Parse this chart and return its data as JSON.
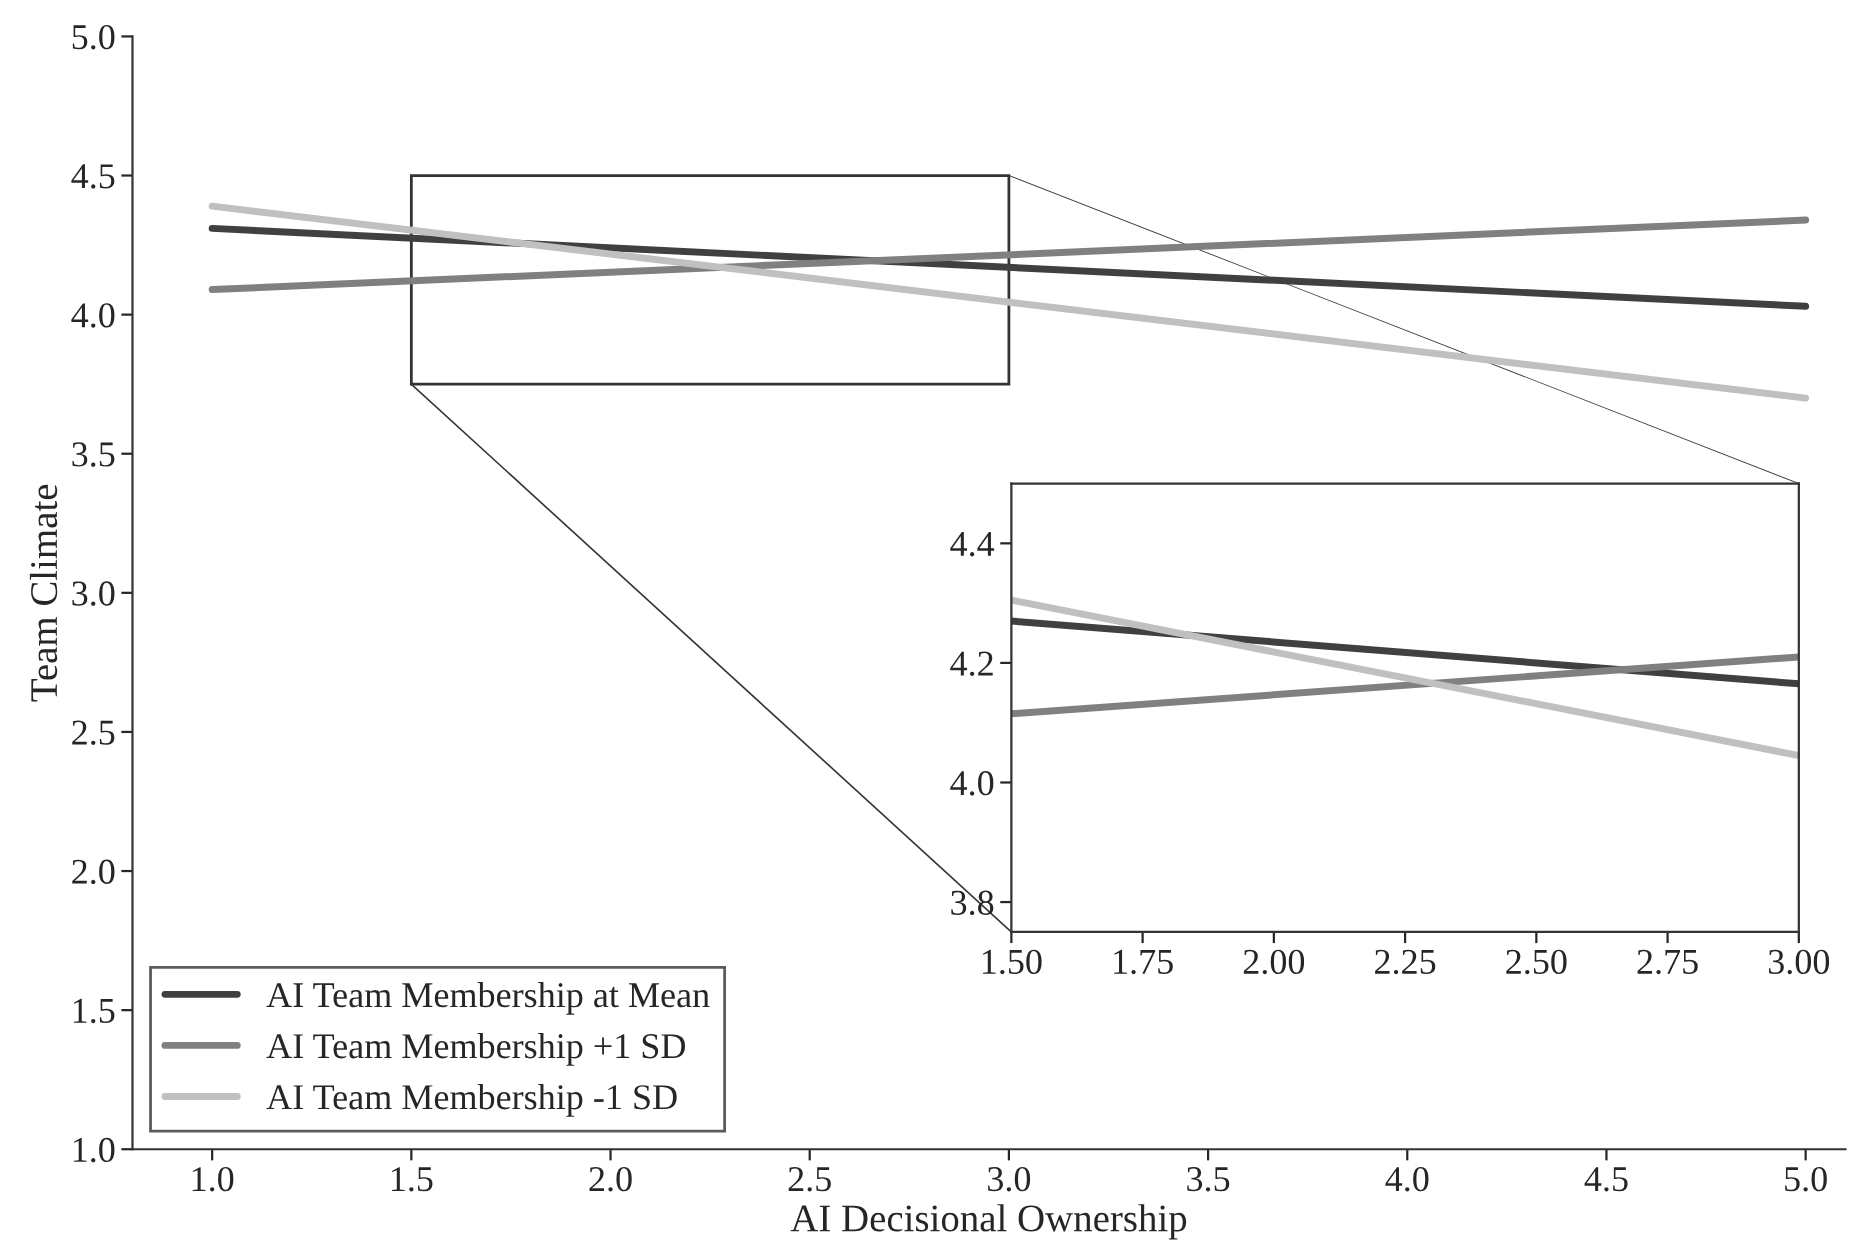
{
  "chart_data": [
    {
      "type": "line",
      "xlabel": "AI Decisional Ownership",
      "ylabel": "Team Climate",
      "x": [
        1.0,
        5.0
      ],
      "series": [
        {
          "name": "AI Team Membership at Mean",
          "color": "#404040",
          "values": [
            4.31,
            4.03
          ]
        },
        {
          "name": "AI Team Membership +1 SD",
          "color": "#808080",
          "values": [
            4.09,
            4.34
          ]
        },
        {
          "name": "AI Team Membership -1 SD",
          "color": "#c0c0c0",
          "values": [
            4.39,
            3.7
          ]
        }
      ],
      "xlim": [
        0.8,
        5.1
      ],
      "ylim": [
        1.0,
        5.0
      ],
      "xticks": [
        {
          "value": 1.0,
          "label": "1.0"
        },
        {
          "value": 1.5,
          "label": "1.5"
        },
        {
          "value": 2.0,
          "label": "2.0"
        },
        {
          "value": 2.5,
          "label": "2.5"
        },
        {
          "value": 3.0,
          "label": "3.0"
        },
        {
          "value": 3.5,
          "label": "3.5"
        },
        {
          "value": 4.0,
          "label": "4.0"
        },
        {
          "value": 4.5,
          "label": "4.5"
        },
        {
          "value": 5.0,
          "label": "5.0"
        }
      ],
      "yticks": [
        {
          "value": 1.0,
          "label": "1.0"
        },
        {
          "value": 1.5,
          "label": "1.5"
        },
        {
          "value": 2.0,
          "label": "2.0"
        },
        {
          "value": 2.5,
          "label": "2.5"
        },
        {
          "value": 3.0,
          "label": "3.0"
        },
        {
          "value": 3.5,
          "label": "3.5"
        },
        {
          "value": 4.0,
          "label": "4.0"
        },
        {
          "value": 4.5,
          "label": "4.5"
        },
        {
          "value": 5.0,
          "label": "5.0"
        }
      ],
      "legend": "bottom left",
      "grid": false,
      "marker": "none",
      "line_style": "solid"
    },
    {
      "type": "line",
      "x": [
        1.5,
        3.0
      ],
      "series": [
        {
          "color": "#404040",
          "values": [
            4.27,
            4.165
          ]
        },
        {
          "color": "#808080",
          "values": [
            4.115,
            4.21
          ]
        },
        {
          "color": "#c0c0c0",
          "values": [
            4.305,
            4.045
          ]
        }
      ],
      "xlim": [
        1.5,
        3.0
      ],
      "ylim": [
        3.75,
        4.5
      ],
      "xticks": [
        {
          "value": 1.5,
          "label": "1.50"
        },
        {
          "value": 1.75,
          "label": "1.75"
        },
        {
          "value": 2.0,
          "label": "2.00"
        },
        {
          "value": 2.25,
          "label": "2.25"
        },
        {
          "value": 2.5,
          "label": "2.50"
        },
        {
          "value": 2.75,
          "label": "2.75"
        },
        {
          "value": 3.0,
          "label": "3.00"
        }
      ],
      "yticks": [
        {
          "value": 3.8,
          "label": "3.8"
        },
        {
          "value": 4.0,
          "label": "4.0"
        },
        {
          "value": 4.2,
          "label": "4.2"
        },
        {
          "value": 4.4,
          "label": "4.4"
        }
      ],
      "grid": false,
      "marker": "none",
      "line_style": "solid"
    }
  ]
}
